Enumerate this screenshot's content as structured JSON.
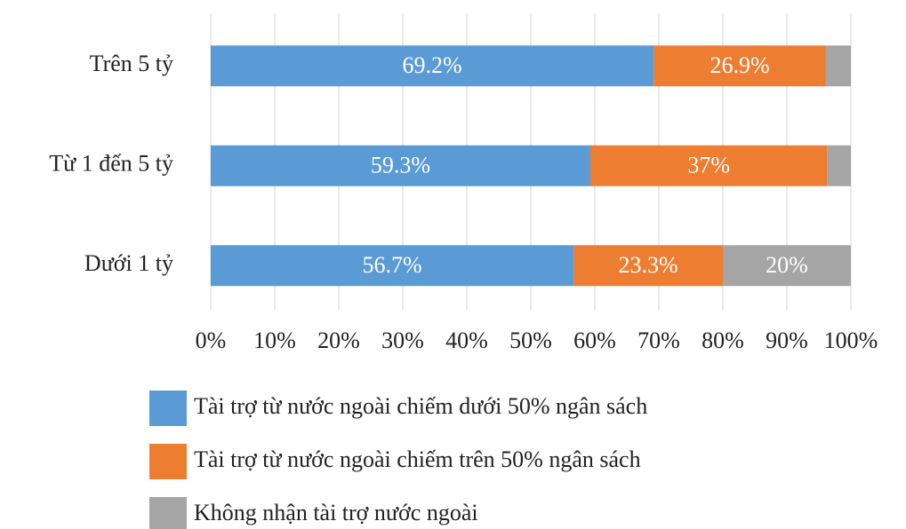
{
  "chart_data": {
    "type": "stacked-barh",
    "categories": [
      "Trên 5 tỷ",
      "Từ 1 đến 5 tỷ",
      "Dưới 1 tỷ"
    ],
    "series": [
      {
        "name": "Tài trợ từ nước ngoài chiếm dưới 50% ngân sách",
        "color": "#5b9bd5",
        "values": [
          69.2,
          59.3,
          56.7
        ],
        "value_labels": [
          "69.2%",
          "59.3%",
          "56.7%"
        ]
      },
      {
        "name": "Tài trợ từ nước ngoài chiếm trên 50% ngân sách",
        "color": "#ed7d31",
        "values": [
          26.9,
          37,
          23.3
        ],
        "value_labels": [
          "26.9%",
          "37%",
          "23.3%"
        ]
      },
      {
        "name": "Không nhận tài trợ nước ngoài",
        "color": "#a5a5a5",
        "values": [
          3.9,
          3.7,
          20
        ],
        "value_labels": [
          null,
          null,
          "20%"
        ]
      }
    ],
    "xlim": [
      0,
      100
    ],
    "xticks": [
      {
        "value": 0,
        "label": "0%"
      },
      {
        "value": 10,
        "label": "10%"
      },
      {
        "value": 20,
        "label": "20%"
      },
      {
        "value": 30,
        "label": "30%"
      },
      {
        "value": 40,
        "label": "40%"
      },
      {
        "value": 50,
        "label": "50%"
      },
      {
        "value": 60,
        "label": "60%"
      },
      {
        "value": 70,
        "label": "70%"
      },
      {
        "value": 80,
        "label": "80%"
      },
      {
        "value": 90,
        "label": "90%"
      },
      {
        "value": 100,
        "label": "100%"
      }
    ],
    "grid": true
  }
}
